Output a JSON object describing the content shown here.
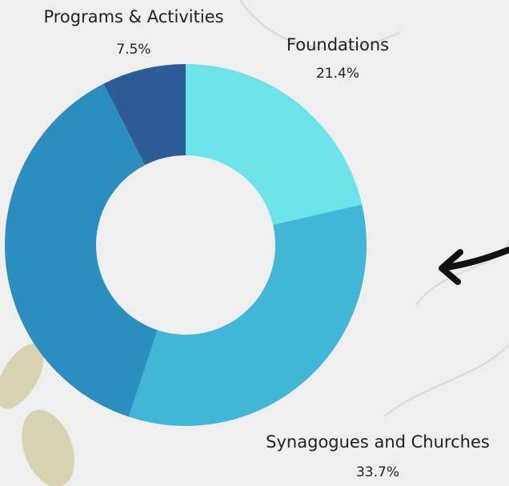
{
  "chart_data": {
    "type": "donut",
    "categories": [
      "Foundations",
      "Synagogues and Churches",
      null,
      "Programs & Activities"
    ],
    "values": [
      21.4,
      33.7,
      37.4,
      7.5
    ],
    "value_labels": [
      "21.4%",
      "33.7%",
      null,
      "7.5%"
    ],
    "colors": [
      "#6be3e8",
      "#41b6d6",
      "#2b8ec0",
      "#2c5d97"
    ]
  }
}
